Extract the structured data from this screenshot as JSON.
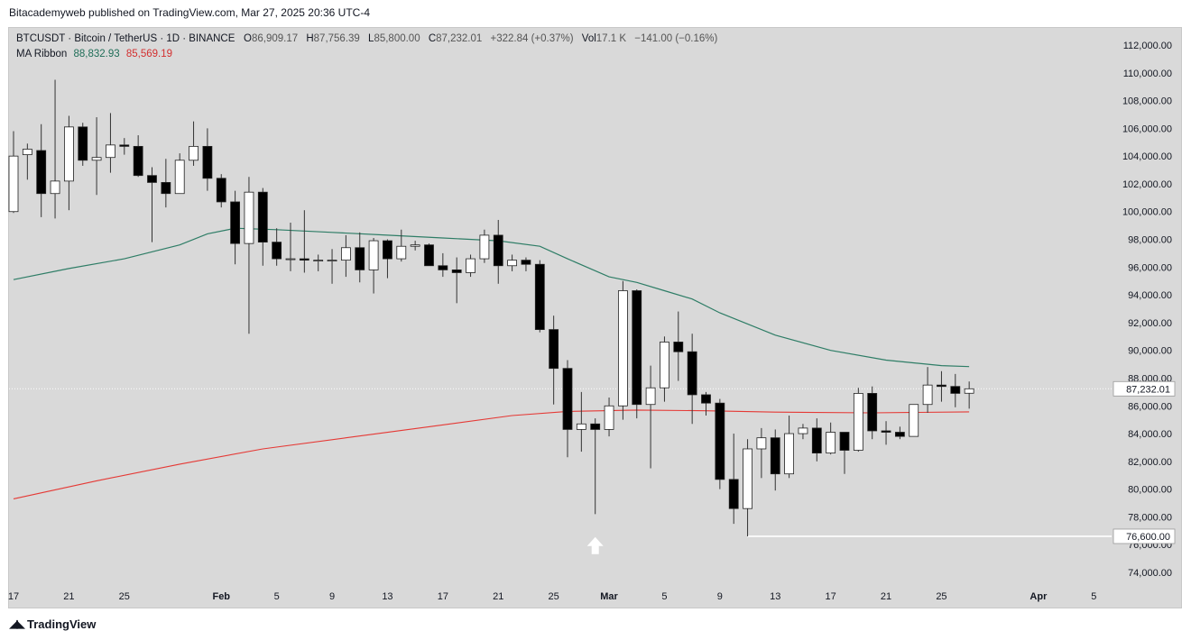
{
  "publisher": "Bitacademyweb published on TradingView.com, Mar 27, 2025 20:36 UTC-4",
  "legend": {
    "symbol": "BTCUSDT · Bitcoin / TetherUS · 1D · BINANCE",
    "o_label": "O",
    "o_value": "86,909.17",
    "h_label": "H",
    "h_value": "87,756.39",
    "l_label": "L",
    "l_value": "85,800.00",
    "c_label": "C",
    "c_value": "87,232.01",
    "change": "+322.84 (+0.37%)",
    "vol_label": "Vol",
    "vol_value": "17.1 K",
    "vol_change": "−141.00 (−0.16%)",
    "ma_label": "MA Ribbon",
    "ma_upper": "88,832.93",
    "ma_lower": "85,569.19"
  },
  "brand": "TradingView",
  "colors": {
    "background": "#d9d9d9",
    "bull_body": "#ffffff",
    "bear_body": "#000000",
    "wick": "#333333",
    "ma_upper_line": "#2e7d66",
    "ma_lower_line": "#e53935",
    "support_line": "#ffffff",
    "arrow": "#ffffff"
  },
  "chart_data": {
    "type": "candlestick",
    "symbol": "BTCUSDT",
    "timeframe": "1D",
    "y_axis": {
      "min": 72500,
      "max": 113000,
      "ticks": [
        74000,
        76000,
        78000,
        80000,
        82000,
        84000,
        86000,
        88000,
        90000,
        92000,
        94000,
        96000,
        98000,
        100000,
        102000,
        104000,
        106000,
        108000,
        110000,
        112000
      ],
      "tick_labels": [
        "74,000.00",
        "76,000.00",
        "78,000.00",
        "80,000.00",
        "82,000.00",
        "84,000.00",
        "86,000.00",
        "88,000.00",
        "90,000.00",
        "92,000.00",
        "94,000.00",
        "96,000.00",
        "98,000.00",
        "100,000.00",
        "102,000.00",
        "104,000.00",
        "106,000.00",
        "108,000.00",
        "110,000.00",
        "112,000.00"
      ]
    },
    "x_axis": {
      "first_date": "2025-01-17",
      "last_date_visible": "2025-04-06",
      "labels": [
        {
          "label": "17",
          "date": "2025-01-17"
        },
        {
          "label": "21",
          "date": "2025-01-21"
        },
        {
          "label": "25",
          "date": "2025-01-25"
        },
        {
          "label": "Feb",
          "date": "2025-02-01"
        },
        {
          "label": "5",
          "date": "2025-02-05"
        },
        {
          "label": "9",
          "date": "2025-02-09"
        },
        {
          "label": "13",
          "date": "2025-02-13"
        },
        {
          "label": "17",
          "date": "2025-02-17"
        },
        {
          "label": "21",
          "date": "2025-02-21"
        },
        {
          "label": "25",
          "date": "2025-02-25"
        },
        {
          "label": "Mar",
          "date": "2025-03-01"
        },
        {
          "label": "5",
          "date": "2025-03-05"
        },
        {
          "label": "9",
          "date": "2025-03-09"
        },
        {
          "label": "13",
          "date": "2025-03-13"
        },
        {
          "label": "17",
          "date": "2025-03-17"
        },
        {
          "label": "21",
          "date": "2025-03-21"
        },
        {
          "label": "25",
          "date": "2025-03-25"
        },
        {
          "label": "Apr",
          "date": "2025-04-01"
        },
        {
          "label": "5",
          "date": "2025-04-05"
        }
      ]
    },
    "candles": [
      {
        "date": "2025-01-17",
        "o": 100000,
        "h": 105800,
        "l": 99900,
        "c": 104000
      },
      {
        "date": "2025-01-18",
        "o": 104100,
        "h": 104900,
        "l": 102300,
        "c": 104500
      },
      {
        "date": "2025-01-19",
        "o": 104400,
        "h": 106300,
        "l": 99600,
        "c": 101300
      },
      {
        "date": "2025-01-20",
        "o": 101300,
        "h": 109500,
        "l": 99500,
        "c": 102200
      },
      {
        "date": "2025-01-21",
        "o": 102200,
        "h": 106900,
        "l": 100100,
        "c": 106100
      },
      {
        "date": "2025-01-22",
        "o": 106100,
        "h": 106400,
        "l": 103300,
        "c": 103700
      },
      {
        "date": "2025-01-23",
        "o": 103700,
        "h": 106800,
        "l": 101200,
        "c": 103900
      },
      {
        "date": "2025-01-24",
        "o": 103900,
        "h": 107100,
        "l": 102800,
        "c": 104800
      },
      {
        "date": "2025-01-25",
        "o": 104800,
        "h": 105300,
        "l": 104100,
        "c": 104700
      },
      {
        "date": "2025-01-26",
        "o": 104700,
        "h": 105500,
        "l": 102500,
        "c": 102600
      },
      {
        "date": "2025-01-27",
        "o": 102600,
        "h": 103200,
        "l": 97800,
        "c": 102100
      },
      {
        "date": "2025-01-28",
        "o": 102100,
        "h": 103800,
        "l": 100300,
        "c": 101300
      },
      {
        "date": "2025-01-29",
        "o": 101300,
        "h": 104200,
        "l": 101300,
        "c": 103700
      },
      {
        "date": "2025-01-30",
        "o": 103700,
        "h": 106500,
        "l": 103300,
        "c": 104700
      },
      {
        "date": "2025-01-31",
        "o": 104700,
        "h": 106000,
        "l": 101500,
        "c": 102400
      },
      {
        "date": "2025-02-01",
        "o": 102400,
        "h": 102700,
        "l": 100300,
        "c": 100700
      },
      {
        "date": "2025-02-02",
        "o": 100700,
        "h": 101500,
        "l": 96200,
        "c": 97700
      },
      {
        "date": "2025-02-03",
        "o": 97700,
        "h": 102500,
        "l": 91200,
        "c": 101400
      },
      {
        "date": "2025-02-04",
        "o": 101400,
        "h": 101700,
        "l": 96100,
        "c": 97800
      },
      {
        "date": "2025-02-05",
        "o": 97800,
        "h": 98800,
        "l": 96100,
        "c": 96600
      },
      {
        "date": "2025-02-06",
        "o": 96600,
        "h": 99200,
        "l": 95700,
        "c": 96600
      },
      {
        "date": "2025-02-07",
        "o": 96600,
        "h": 100100,
        "l": 95600,
        "c": 96500
      },
      {
        "date": "2025-02-08",
        "o": 96500,
        "h": 96900,
        "l": 95700,
        "c": 96500
      },
      {
        "date": "2025-02-09",
        "o": 96500,
        "h": 97300,
        "l": 94800,
        "c": 96500
      },
      {
        "date": "2025-02-10",
        "o": 96500,
        "h": 98300,
        "l": 95300,
        "c": 97400
      },
      {
        "date": "2025-02-11",
        "o": 97400,
        "h": 98500,
        "l": 94900,
        "c": 95800
      },
      {
        "date": "2025-02-12",
        "o": 95800,
        "h": 98100,
        "l": 94100,
        "c": 97900
      },
      {
        "date": "2025-02-13",
        "o": 97900,
        "h": 98000,
        "l": 95200,
        "c": 96600
      },
      {
        "date": "2025-02-14",
        "o": 96600,
        "h": 98700,
        "l": 96400,
        "c": 97500
      },
      {
        "date": "2025-02-15",
        "o": 97500,
        "h": 97900,
        "l": 97200,
        "c": 97600
      },
      {
        "date": "2025-02-16",
        "o": 97600,
        "h": 97700,
        "l": 96100,
        "c": 96100
      },
      {
        "date": "2025-02-17",
        "o": 96100,
        "h": 97000,
        "l": 95300,
        "c": 95800
      },
      {
        "date": "2025-02-18",
        "o": 95800,
        "h": 96700,
        "l": 93400,
        "c": 95600
      },
      {
        "date": "2025-02-19",
        "o": 95600,
        "h": 96900,
        "l": 95300,
        "c": 96600
      },
      {
        "date": "2025-02-20",
        "o": 96600,
        "h": 98700,
        "l": 96300,
        "c": 98300
      },
      {
        "date": "2025-02-21",
        "o": 98300,
        "h": 99400,
        "l": 94800,
        "c": 96100
      },
      {
        "date": "2025-02-22",
        "o": 96100,
        "h": 96900,
        "l": 95700,
        "c": 96500
      },
      {
        "date": "2025-02-23",
        "o": 96500,
        "h": 96700,
        "l": 95700,
        "c": 96200
      },
      {
        "date": "2025-02-24",
        "o": 96200,
        "h": 96500,
        "l": 91300,
        "c": 91500
      },
      {
        "date": "2025-02-25",
        "o": 91500,
        "h": 92500,
        "l": 86100,
        "c": 88700
      },
      {
        "date": "2025-02-26",
        "o": 88700,
        "h": 89300,
        "l": 82300,
        "c": 84300
      },
      {
        "date": "2025-02-27",
        "o": 84300,
        "h": 87000,
        "l": 82700,
        "c": 84700
      },
      {
        "date": "2025-02-28",
        "o": 84700,
        "h": 85100,
        "l": 78200,
        "c": 84300
      },
      {
        "date": "2025-03-01",
        "o": 84300,
        "h": 86600,
        "l": 83800,
        "c": 86000
      },
      {
        "date": "2025-03-02",
        "o": 86000,
        "h": 95000,
        "l": 85000,
        "c": 94300
      },
      {
        "date": "2025-03-03",
        "o": 94300,
        "h": 94400,
        "l": 85100,
        "c": 86100
      },
      {
        "date": "2025-03-04",
        "o": 86100,
        "h": 88900,
        "l": 81500,
        "c": 87300
      },
      {
        "date": "2025-03-05",
        "o": 87300,
        "h": 91000,
        "l": 86300,
        "c": 90600
      },
      {
        "date": "2025-03-06",
        "o": 90600,
        "h": 92800,
        "l": 87800,
        "c": 89900
      },
      {
        "date": "2025-03-07",
        "o": 89900,
        "h": 91200,
        "l": 84700,
        "c": 86800
      },
      {
        "date": "2025-03-08",
        "o": 86800,
        "h": 87000,
        "l": 85300,
        "c": 86200
      },
      {
        "date": "2025-03-09",
        "o": 86200,
        "h": 86500,
        "l": 80000,
        "c": 80700
      },
      {
        "date": "2025-03-10",
        "o": 80700,
        "h": 84000,
        "l": 77500,
        "c": 78600
      },
      {
        "date": "2025-03-11",
        "o": 78600,
        "h": 83600,
        "l": 76600,
        "c": 82900
      },
      {
        "date": "2025-03-12",
        "o": 82900,
        "h": 84400,
        "l": 80800,
        "c": 83700
      },
      {
        "date": "2025-03-13",
        "o": 83700,
        "h": 84300,
        "l": 79900,
        "c": 81100
      },
      {
        "date": "2025-03-14",
        "o": 81100,
        "h": 85300,
        "l": 80800,
        "c": 84000
      },
      {
        "date": "2025-03-15",
        "o": 84000,
        "h": 84700,
        "l": 83600,
        "c": 84400
      },
      {
        "date": "2025-03-16",
        "o": 84400,
        "h": 85100,
        "l": 82000,
        "c": 82600
      },
      {
        "date": "2025-03-17",
        "o": 82600,
        "h": 84800,
        "l": 82500,
        "c": 84100
      },
      {
        "date": "2025-03-18",
        "o": 84100,
        "h": 84100,
        "l": 81100,
        "c": 82800
      },
      {
        "date": "2025-03-19",
        "o": 82800,
        "h": 87300,
        "l": 82700,
        "c": 86900
      },
      {
        "date": "2025-03-20",
        "o": 86900,
        "h": 87400,
        "l": 83600,
        "c": 84200
      },
      {
        "date": "2025-03-21",
        "o": 84200,
        "h": 84900,
        "l": 83200,
        "c": 84100
      },
      {
        "date": "2025-03-22",
        "o": 84100,
        "h": 84500,
        "l": 83600,
        "c": 83800
      },
      {
        "date": "2025-03-23",
        "o": 83800,
        "h": 86100,
        "l": 83800,
        "c": 86100
      },
      {
        "date": "2025-03-24",
        "o": 86100,
        "h": 88800,
        "l": 85500,
        "c": 87500
      },
      {
        "date": "2025-03-25",
        "o": 87500,
        "h": 88500,
        "l": 86300,
        "c": 87400
      },
      {
        "date": "2025-03-26",
        "o": 87400,
        "h": 88300,
        "l": 85900,
        "c": 86900
      },
      {
        "date": "2025-03-27",
        "o": 86909.17,
        "h": 87756.39,
        "l": 85800,
        "c": 87232.01
      }
    ],
    "ma_upper": [
      {
        "date": "2025-01-17",
        "v": 95100
      },
      {
        "date": "2025-01-21",
        "v": 95900
      },
      {
        "date": "2025-01-25",
        "v": 96600
      },
      {
        "date": "2025-01-29",
        "v": 97600
      },
      {
        "date": "2025-01-31",
        "v": 98400
      },
      {
        "date": "2025-02-02",
        "v": 98800
      },
      {
        "date": "2025-02-05",
        "v": 98700
      },
      {
        "date": "2025-02-09",
        "v": 98500
      },
      {
        "date": "2025-02-13",
        "v": 98300
      },
      {
        "date": "2025-02-17",
        "v": 98100
      },
      {
        "date": "2025-02-21",
        "v": 97900
      },
      {
        "date": "2025-02-24",
        "v": 97500
      },
      {
        "date": "2025-02-26",
        "v": 96600
      },
      {
        "date": "2025-03-01",
        "v": 95300
      },
      {
        "date": "2025-03-03",
        "v": 94900
      },
      {
        "date": "2025-03-05",
        "v": 94300
      },
      {
        "date": "2025-03-07",
        "v": 93700
      },
      {
        "date": "2025-03-09",
        "v": 92700
      },
      {
        "date": "2025-03-13",
        "v": 91100
      },
      {
        "date": "2025-03-17",
        "v": 90000
      },
      {
        "date": "2025-03-21",
        "v": 89300
      },
      {
        "date": "2025-03-25",
        "v": 88900
      },
      {
        "date": "2025-03-27",
        "v": 88832.93
      }
    ],
    "ma_lower": [
      {
        "date": "2025-01-17",
        "v": 79300
      },
      {
        "date": "2025-01-23",
        "v": 80600
      },
      {
        "date": "2025-01-29",
        "v": 81800
      },
      {
        "date": "2025-02-04",
        "v": 82900
      },
      {
        "date": "2025-02-10",
        "v": 83700
      },
      {
        "date": "2025-02-16",
        "v": 84500
      },
      {
        "date": "2025-02-22",
        "v": 85300
      },
      {
        "date": "2025-02-26",
        "v": 85600
      },
      {
        "date": "2025-03-03",
        "v": 85700
      },
      {
        "date": "2025-03-08",
        "v": 85650
      },
      {
        "date": "2025-03-13",
        "v": 85550
      },
      {
        "date": "2025-03-20",
        "v": 85500
      },
      {
        "date": "2025-03-27",
        "v": 85569.19
      }
    ],
    "current_price": {
      "value": 87232.01,
      "label": "87,232.01"
    },
    "support_line": {
      "value": 76600,
      "label": "76,600.00",
      "from_date": "2025-03-11"
    },
    "annotation_arrow": {
      "date": "2025-02-28",
      "value": 75900,
      "direction": "up"
    }
  }
}
